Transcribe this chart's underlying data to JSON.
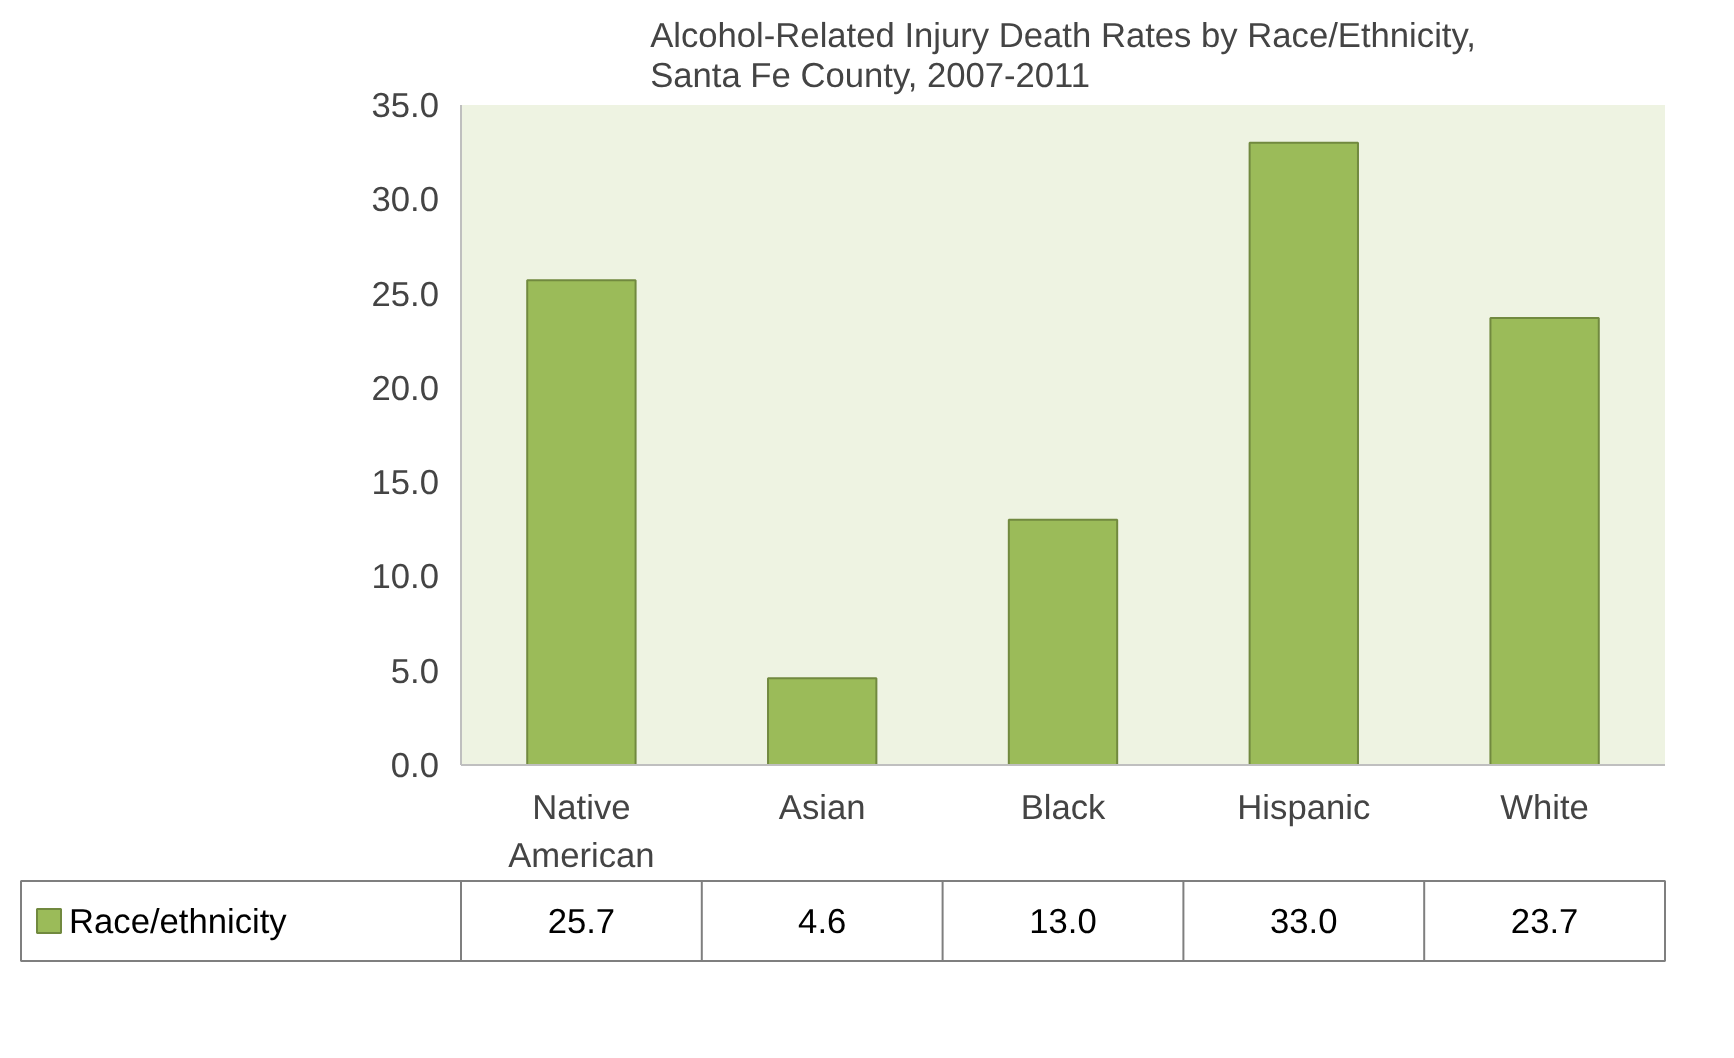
{
  "chart_data": {
    "type": "bar",
    "title": "Alcohol-Related Injury Death Rates by Race/Ethnicity, Santa Fe County, 2007-2011",
    "categories": [
      "Native American",
      "Asian",
      "Black",
      "Hispanic",
      "White"
    ],
    "series": [
      {
        "name": "Race/ethnicity",
        "color": "#9bbb59",
        "values": [
          25.7,
          4.6,
          13.0,
          33.0,
          23.7
        ],
        "value_labels": [
          "25.7",
          "4.6",
          "13.0",
          "33.0",
          "23.7"
        ]
      }
    ],
    "ylim": [
      0,
      35
    ],
    "yticks": [
      {
        "value": 0,
        "label": "0.0"
      },
      {
        "value": 5,
        "label": "5.0"
      },
      {
        "value": 10,
        "label": "10.0"
      },
      {
        "value": 15,
        "label": "15.0"
      },
      {
        "value": 20,
        "label": "20.0"
      },
      {
        "value": 25,
        "label": "25.0"
      },
      {
        "value": 30,
        "label": "30.0"
      },
      {
        "value": 35,
        "label": "35.0"
      }
    ],
    "legend": "bottom left"
  }
}
